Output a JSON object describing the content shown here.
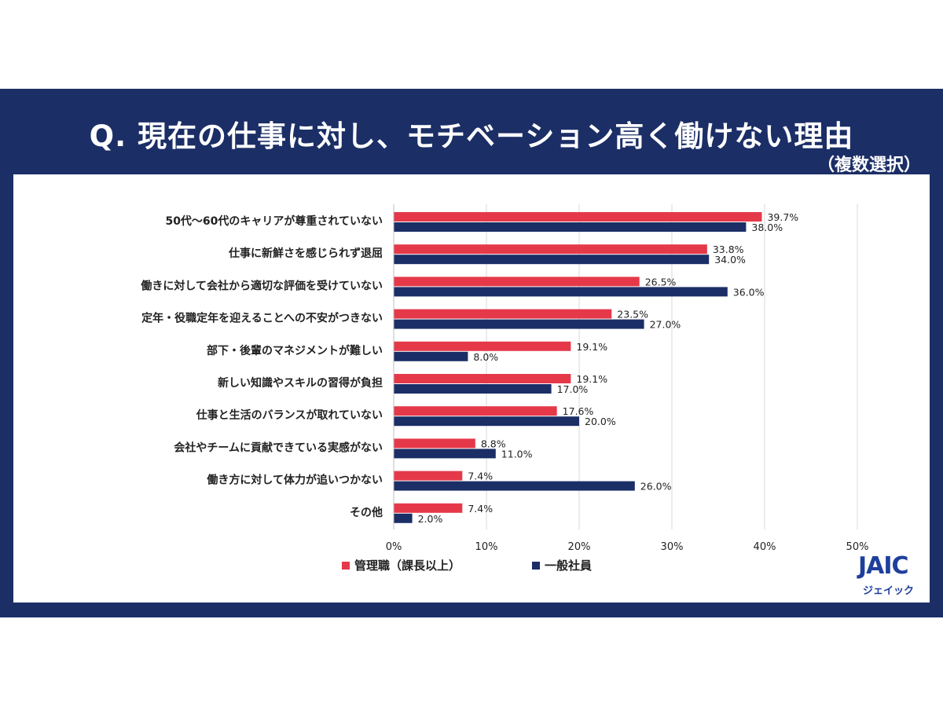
{
  "header": {
    "title": "Q. 現在の仕事に対し、モチベーション高く働けない理由",
    "subtitle": "（複数選択）"
  },
  "colors": {
    "frame": "#1b2e66",
    "series_manager": "#e5394a",
    "series_general": "#1b2e66"
  },
  "logo": {
    "mark": "JAIC",
    "sub": "ジェイック"
  },
  "chart_data": {
    "type": "bar",
    "orientation": "horizontal",
    "categories": [
      "50代～60代のキャリアが尊重されていない",
      "仕事に新鮮さを感じられず退屈",
      "働きに対して会社から適切な評価を受けていない",
      "定年・役職定年を迎えることへの不安がつきない",
      "部下・後輩のマネジメントが難しい",
      "新しい知識やスキルの習得が負担",
      "仕事と生活のバランスが取れていない",
      "会社やチームに貢献できている実感がない",
      "働き方に対して体力が追いつかない",
      "その他"
    ],
    "series": [
      {
        "name": "管理職（課長以上）",
        "color": "#e5394a",
        "values": [
          39.7,
          33.8,
          26.5,
          23.5,
          19.1,
          19.1,
          17.6,
          8.8,
          7.4,
          7.4
        ],
        "labels": [
          "39.7%",
          "33.8%",
          "26.5%",
          "23.5%",
          "19.1%",
          "19.1%",
          "17.6%",
          "8.8%",
          "7.4%",
          "7.4%"
        ]
      },
      {
        "name": "一般社員",
        "color": "#1b2e66",
        "values": [
          38.0,
          34.0,
          36.0,
          27.0,
          8.0,
          17.0,
          20.0,
          11.0,
          26.0,
          2.0
        ],
        "labels": [
          "38.0%",
          "34.0%",
          "36.0%",
          "27.0%",
          "8.0%",
          "17.0%",
          "20.0%",
          "11.0%",
          "26.0%",
          "2.0%"
        ]
      }
    ],
    "xlim": [
      0,
      50
    ],
    "xticks": [
      "0%",
      "10%",
      "20%",
      "30%",
      "40%",
      "50%"
    ],
    "grid": true,
    "legend_position": "bottom-left"
  }
}
